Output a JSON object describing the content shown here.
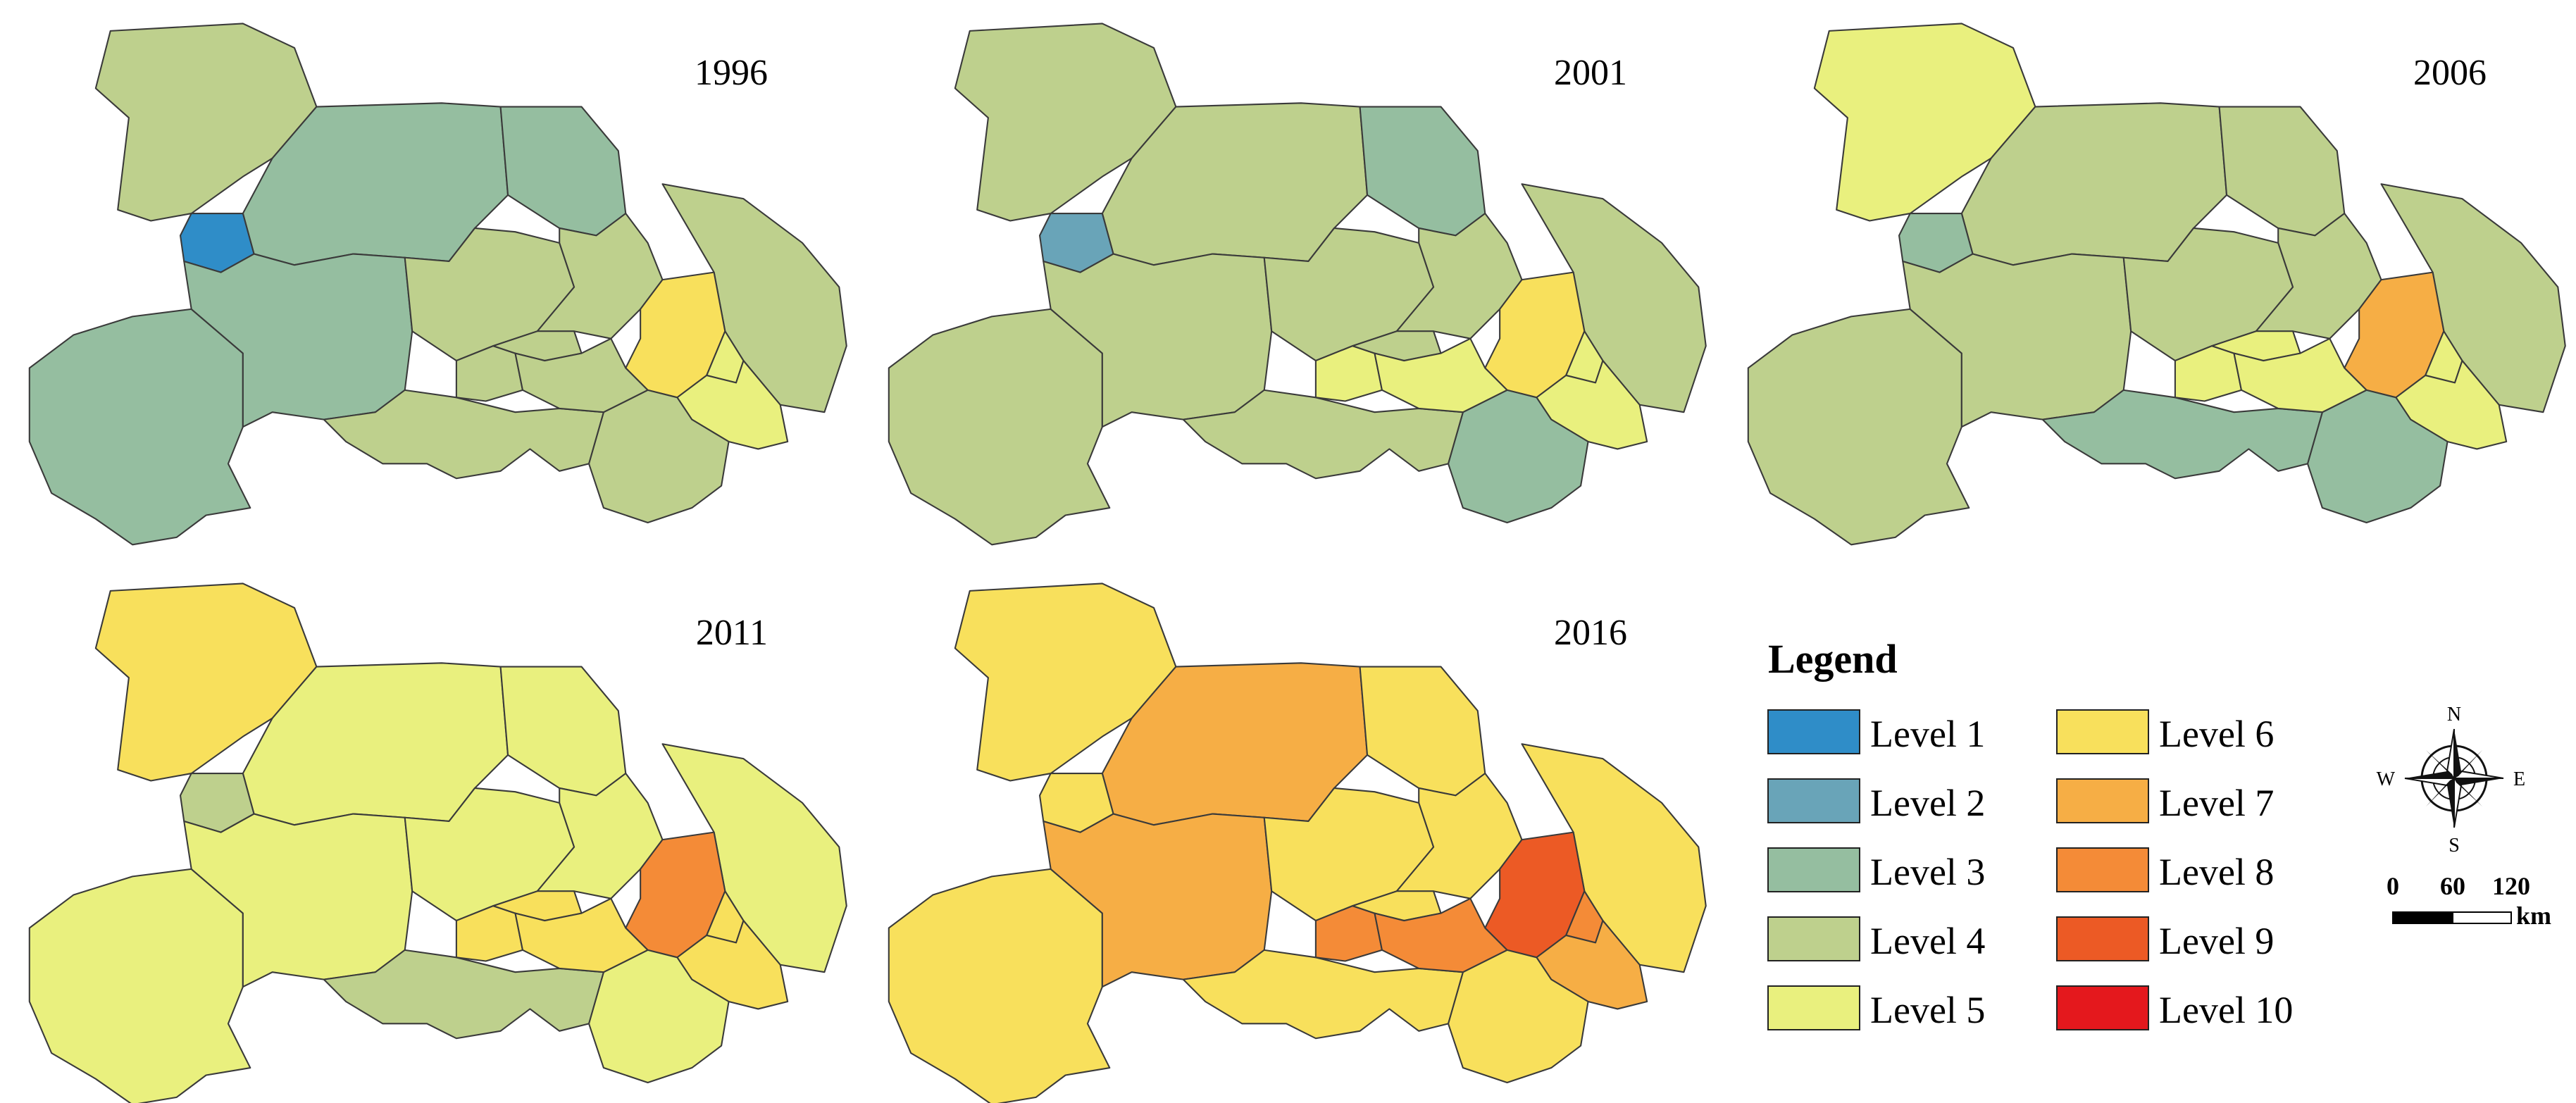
{
  "maps": [
    {
      "year": "1996",
      "regions": {
        "shiyan": "L4",
        "xiangyang": "L3",
        "suizhou": "L3",
        "shennongjia": "L1",
        "enshi": "L3",
        "yichang": "L3",
        "jingmen": "L4",
        "xiaogan": "L4",
        "huanggang": "L4",
        "wuhan": "L6",
        "ezhou": "L5",
        "huangshi": "L5",
        "xianning": "L4",
        "jingzhou": "L4",
        "qianjiang": "L4",
        "tianmen": "L4",
        "xiantao": "L4"
      }
    },
    {
      "year": "2001",
      "regions": {
        "shiyan": "L4",
        "xiangyang": "L4",
        "suizhou": "L3",
        "shennongjia": "L2",
        "enshi": "L4",
        "yichang": "L4",
        "jingmen": "L4",
        "xiaogan": "L4",
        "huanggang": "L4",
        "wuhan": "L6",
        "ezhou": "L5",
        "huangshi": "L5",
        "xianning": "L3",
        "jingzhou": "L4",
        "qianjiang": "L5",
        "tianmen": "L4",
        "xiantao": "L5"
      }
    },
    {
      "year": "2006",
      "regions": {
        "shiyan": "L5",
        "xiangyang": "L4",
        "suizhou": "L4",
        "shennongjia": "L3",
        "enshi": "L4",
        "yichang": "L4",
        "jingmen": "L4",
        "xiaogan": "L4",
        "huanggang": "L4",
        "wuhan": "L7",
        "ezhou": "L5",
        "huangshi": "L5",
        "xianning": "L3",
        "jingzhou": "L3",
        "qianjiang": "L5",
        "tianmen": "L5",
        "xiantao": "L5"
      }
    },
    {
      "year": "2011",
      "regions": {
        "shiyan": "L6",
        "xiangyang": "L5",
        "suizhou": "L5",
        "shennongjia": "L4",
        "enshi": "L5",
        "yichang": "L5",
        "jingmen": "L5",
        "xiaogan": "L5",
        "huanggang": "L5",
        "wuhan": "L8",
        "ezhou": "L6",
        "huangshi": "L6",
        "xianning": "L5",
        "jingzhou": "L4",
        "qianjiang": "L6",
        "tianmen": "L6",
        "xiantao": "L6"
      }
    },
    {
      "year": "2016",
      "regions": {
        "shiyan": "L6",
        "xiangyang": "L7",
        "suizhou": "L6",
        "shennongjia": "L6",
        "enshi": "L6",
        "yichang": "L7",
        "jingmen": "L6",
        "xiaogan": "L6",
        "huanggang": "L6",
        "wuhan": "L9",
        "ezhou": "L8",
        "huangshi": "L7",
        "xianning": "L6",
        "jingzhou": "L6",
        "qianjiang": "L8",
        "tianmen": "L6",
        "xiantao": "L8"
      }
    }
  ],
  "legend": {
    "title": "Legend",
    "levels": [
      {
        "id": "L1",
        "label": "Level 1",
        "color": "#2f8dc8"
      },
      {
        "id": "L2",
        "label": "Level 2",
        "color": "#69a4b8"
      },
      {
        "id": "L3",
        "label": "Level 3",
        "color": "#95bea0"
      },
      {
        "id": "L4",
        "label": "Level 4",
        "color": "#bed08d"
      },
      {
        "id": "L5",
        "label": "Level 5",
        "color": "#e9f07e"
      },
      {
        "id": "L6",
        "label": "Level 6",
        "color": "#f8e05c"
      },
      {
        "id": "L7",
        "label": "Level 7",
        "color": "#f6ae45"
      },
      {
        "id": "L8",
        "label": "Level 8",
        "color": "#f48b37"
      },
      {
        "id": "L9",
        "label": "Level 9",
        "color": "#ec5a25"
      },
      {
        "id": "L10",
        "label": "Level 10",
        "color": "#e4181d"
      }
    ]
  },
  "compass": {
    "n": "N",
    "s": "S",
    "e": "E",
    "w": "W"
  },
  "scalebar": {
    "ticks": [
      "0",
      "60",
      "120"
    ],
    "unit": "km"
  }
}
